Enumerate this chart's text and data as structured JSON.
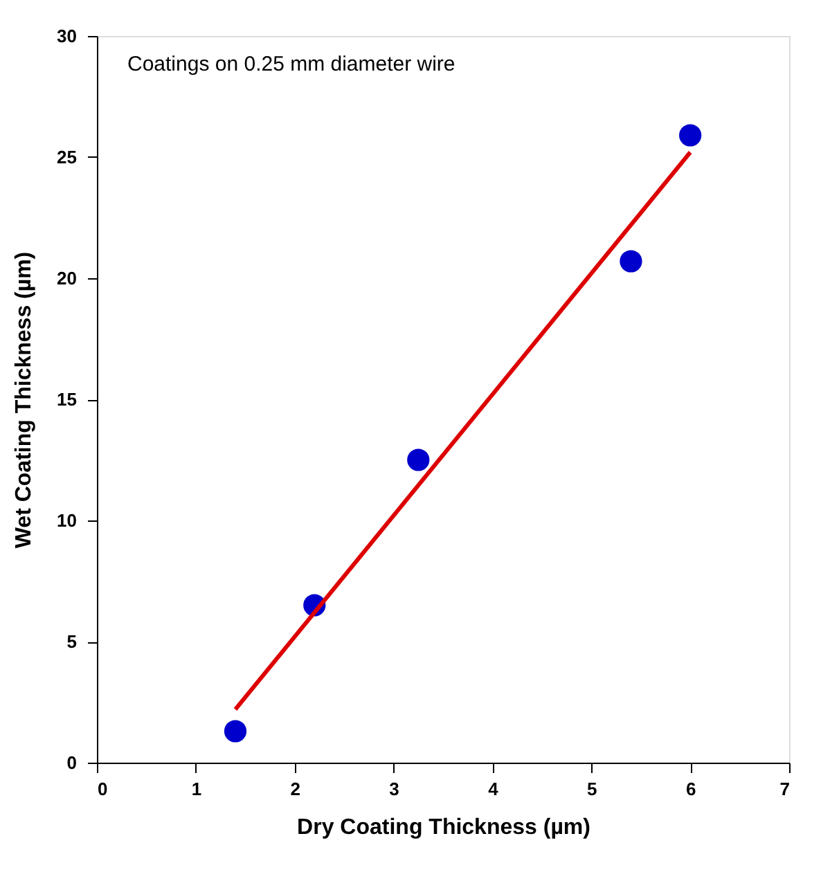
{
  "chart_data": {
    "type": "scatter",
    "xlabel": "Dry Coating Thickness (µm)",
    "ylabel": "Wet Coating Thickness (µm)",
    "annotations": [
      "Coatings on 0.25 mm diameter wire"
    ],
    "xlim": [
      0,
      7
    ],
    "ylim": [
      0,
      30
    ],
    "xticks": [
      0,
      1,
      2,
      3,
      4,
      5,
      6,
      7
    ],
    "yticks": [
      0,
      5,
      10,
      15,
      20,
      25,
      30
    ],
    "grid": false,
    "marker": "circle",
    "series": [
      {
        "type": "scatter",
        "color": "#0000cc",
        "x": [
          1.4,
          2.2,
          3.25,
          5.4,
          6.0
        ],
        "values": [
          1.3,
          6.5,
          12.5,
          20.7,
          25.9
        ]
      },
      {
        "type": "line",
        "color": "#dd0000",
        "x": [
          1.4,
          6.0
        ],
        "values": [
          2.2,
          25.2
        ],
        "marker": "none",
        "line_style": "solid"
      }
    ]
  }
}
